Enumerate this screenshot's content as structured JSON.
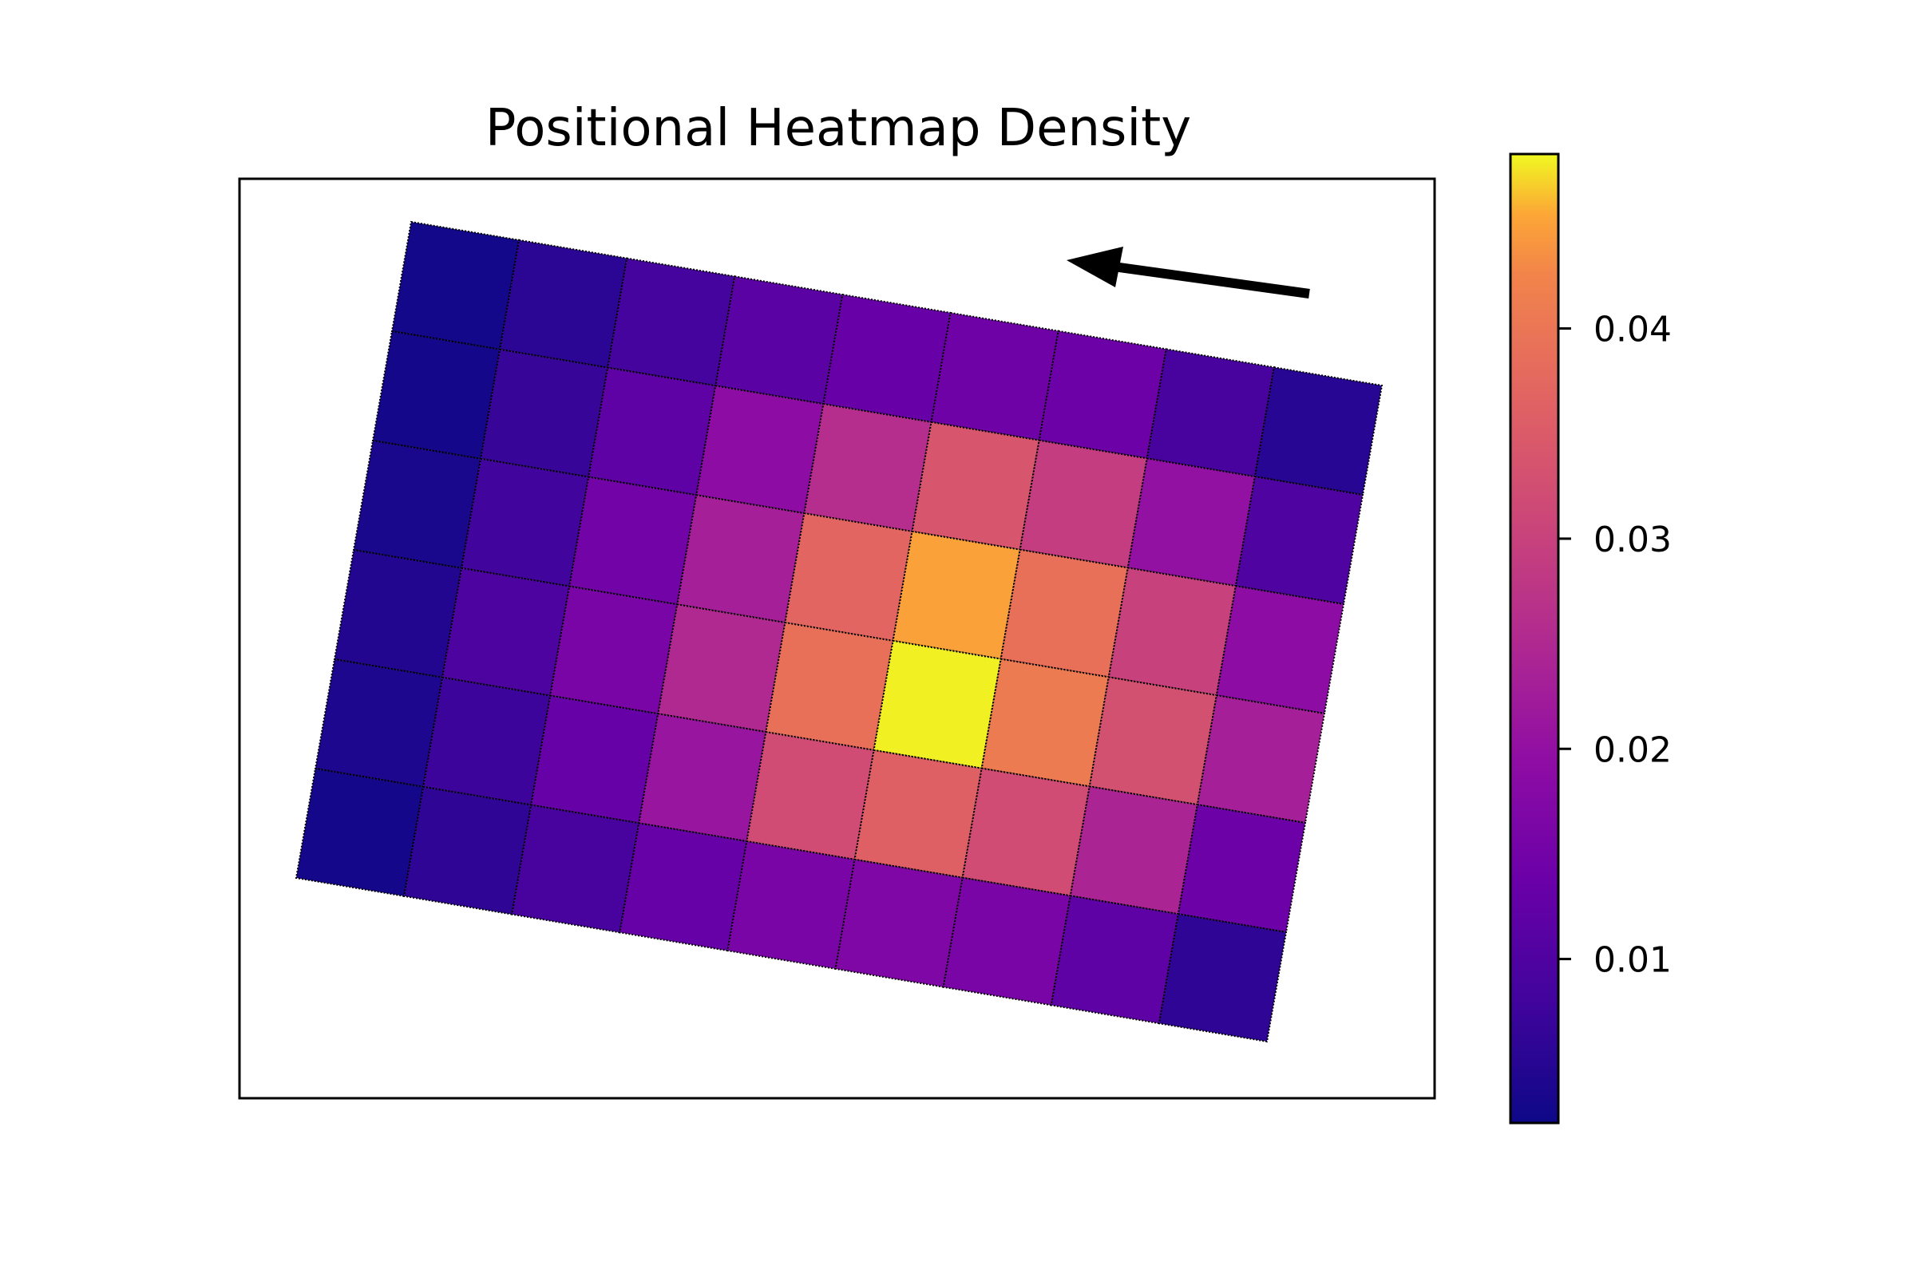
{
  "chart_data": {
    "type": "heatmap",
    "title": "Positional Heatmap Density",
    "xlabel": "",
    "ylabel": "",
    "colormap": "plasma",
    "color_range": [
      0.0022,
      0.0483
    ],
    "colorbar": {
      "ticks": [
        0.01,
        0.02,
        0.03,
        0.04
      ],
      "tick_labels": [
        "0.01",
        "0.02",
        "0.03",
        "0.04"
      ],
      "placement": "right"
    },
    "rotation_degrees": -10,
    "rows": 6,
    "cols": 9,
    "values": [
      [
        0.0028,
        0.0055,
        0.0085,
        0.0115,
        0.0135,
        0.0145,
        0.014,
        0.009,
        0.005
      ],
      [
        0.003,
        0.007,
        0.012,
        0.019,
        0.026,
        0.034,
        0.029,
        0.02,
        0.01
      ],
      [
        0.0035,
        0.008,
        0.015,
        0.023,
        0.037,
        0.045,
        0.039,
        0.03,
        0.019
      ],
      [
        0.0045,
        0.0095,
        0.016,
        0.025,
        0.039,
        0.048,
        0.041,
        0.033,
        0.023
      ],
      [
        0.004,
        0.0075,
        0.013,
        0.021,
        0.032,
        0.036,
        0.032,
        0.024,
        0.014
      ],
      [
        0.003,
        0.006,
        0.009,
        0.013,
        0.016,
        0.017,
        0.016,
        0.012,
        0.006
      ]
    ],
    "arrow": {
      "direction": "left"
    },
    "grid": true,
    "grid_style": "dotted"
  }
}
